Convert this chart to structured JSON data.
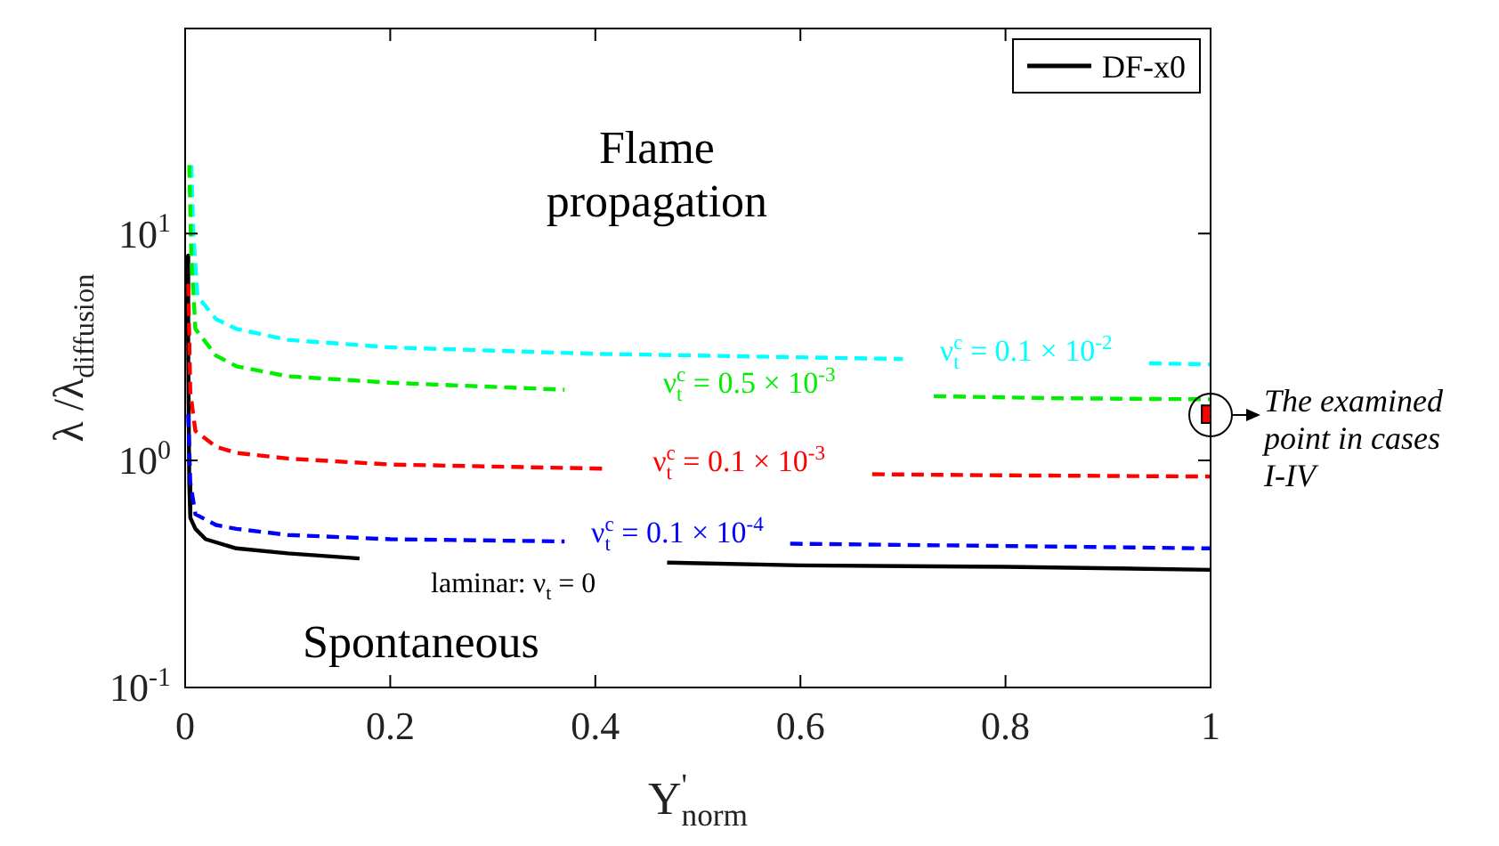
{
  "chart_data": {
    "type": "line",
    "xlabel": "Y$^{'}$$_{norm}$",
    "ylabel": "λ /λ$_{diffusion}$",
    "xlim": [
      0,
      1
    ],
    "xticks": [
      0,
      0.2,
      0.4,
      0.6,
      0.8,
      1
    ],
    "ylim": [
      0.1,
      80
    ],
    "yticks": [
      {
        "value": 0.1,
        "label": "10$^{-1}$"
      },
      {
        "value": 1,
        "label": "10$^{0}$"
      },
      {
        "value": 10,
        "label": "10$^{1}$"
      }
    ],
    "log": "y",
    "grid": false,
    "legend": "top right",
    "marker": "none",
    "series": [
      {
        "name": "DF-x0",
        "color": "#000000",
        "line_style": "solid",
        "x": [
          0.002,
          0.003,
          0.004,
          0.005,
          0.01,
          0.02,
          0.05,
          0.1,
          0.17,
          0.32,
          0.47,
          0.6,
          0.8,
          1
        ],
        "values": [
          8,
          3,
          0.8,
          0.56,
          0.5,
          0.45,
          0.41,
          0.39,
          0.37,
          null,
          0.355,
          0.345,
          0.34,
          0.33
        ]
      },
      {
        "name": "ν$_{t}$$^{c}$ = 0.1 × 10$^{-4}$",
        "color": "#0000ff",
        "line_style": "dashed",
        "x": [
          0.003,
          0.005,
          0.01,
          0.03,
          0.05,
          0.1,
          0.2,
          0.37,
          0.48,
          0.59,
          0.8,
          1
        ],
        "values": [
          1.6,
          0.8,
          0.58,
          0.52,
          0.5,
          0.47,
          0.45,
          0.44,
          null,
          0.43,
          0.42,
          0.41
        ]
      },
      {
        "name": "ν$_{t}$$^{c}$ = 0.1 × 10$^{-3}$",
        "color": "#ff0000",
        "line_style": "dashed",
        "x": [
          0.003,
          0.005,
          0.01,
          0.03,
          0.05,
          0.1,
          0.2,
          0.41,
          0.54,
          0.67,
          0.8,
          1
        ],
        "values": [
          6,
          2,
          1.35,
          1.15,
          1.08,
          1.02,
          0.96,
          0.92,
          null,
          0.87,
          0.86,
          0.85
        ]
      },
      {
        "name": "ν$_{t}$$^{c}$ = 0.5 × 10$^{-3}$",
        "color": "#00ee00",
        "line_style": "dashed",
        "x": [
          0.004,
          0.006,
          0.01,
          0.03,
          0.05,
          0.1,
          0.2,
          0.37,
          0.55,
          0.73,
          0.85,
          1
        ],
        "values": [
          20,
          8,
          3.8,
          2.9,
          2.6,
          2.35,
          2.2,
          2.05,
          null,
          1.92,
          1.88,
          1.86
        ]
      },
      {
        "name": "ν$_{t}$$^{c}$ = 0.1 × 10$^{-2}$",
        "color": "#00ffff",
        "line_style": "dashed",
        "x": [
          0.006,
          0.008,
          0.012,
          0.03,
          0.05,
          0.1,
          0.2,
          0.4,
          0.7,
          0.82,
          0.94,
          1
        ],
        "values": [
          20,
          10,
          5.3,
          4.2,
          3.8,
          3.4,
          3.15,
          2.95,
          2.8,
          null,
          2.68,
          2.65
        ]
      },
      {
        "type": "scatter",
        "color": "#ff0000",
        "marker": "square",
        "x": [
          1
        ],
        "values": [
          1.6
        ]
      }
    ],
    "annotations": [
      "Flame propagation",
      "Spontaneous",
      "laminar: ν$_{t}$ = 0",
      {
        "text": "The examined point in cases I-IV",
        "x": 1,
        "y": 1.6
      }
    ]
  }
}
